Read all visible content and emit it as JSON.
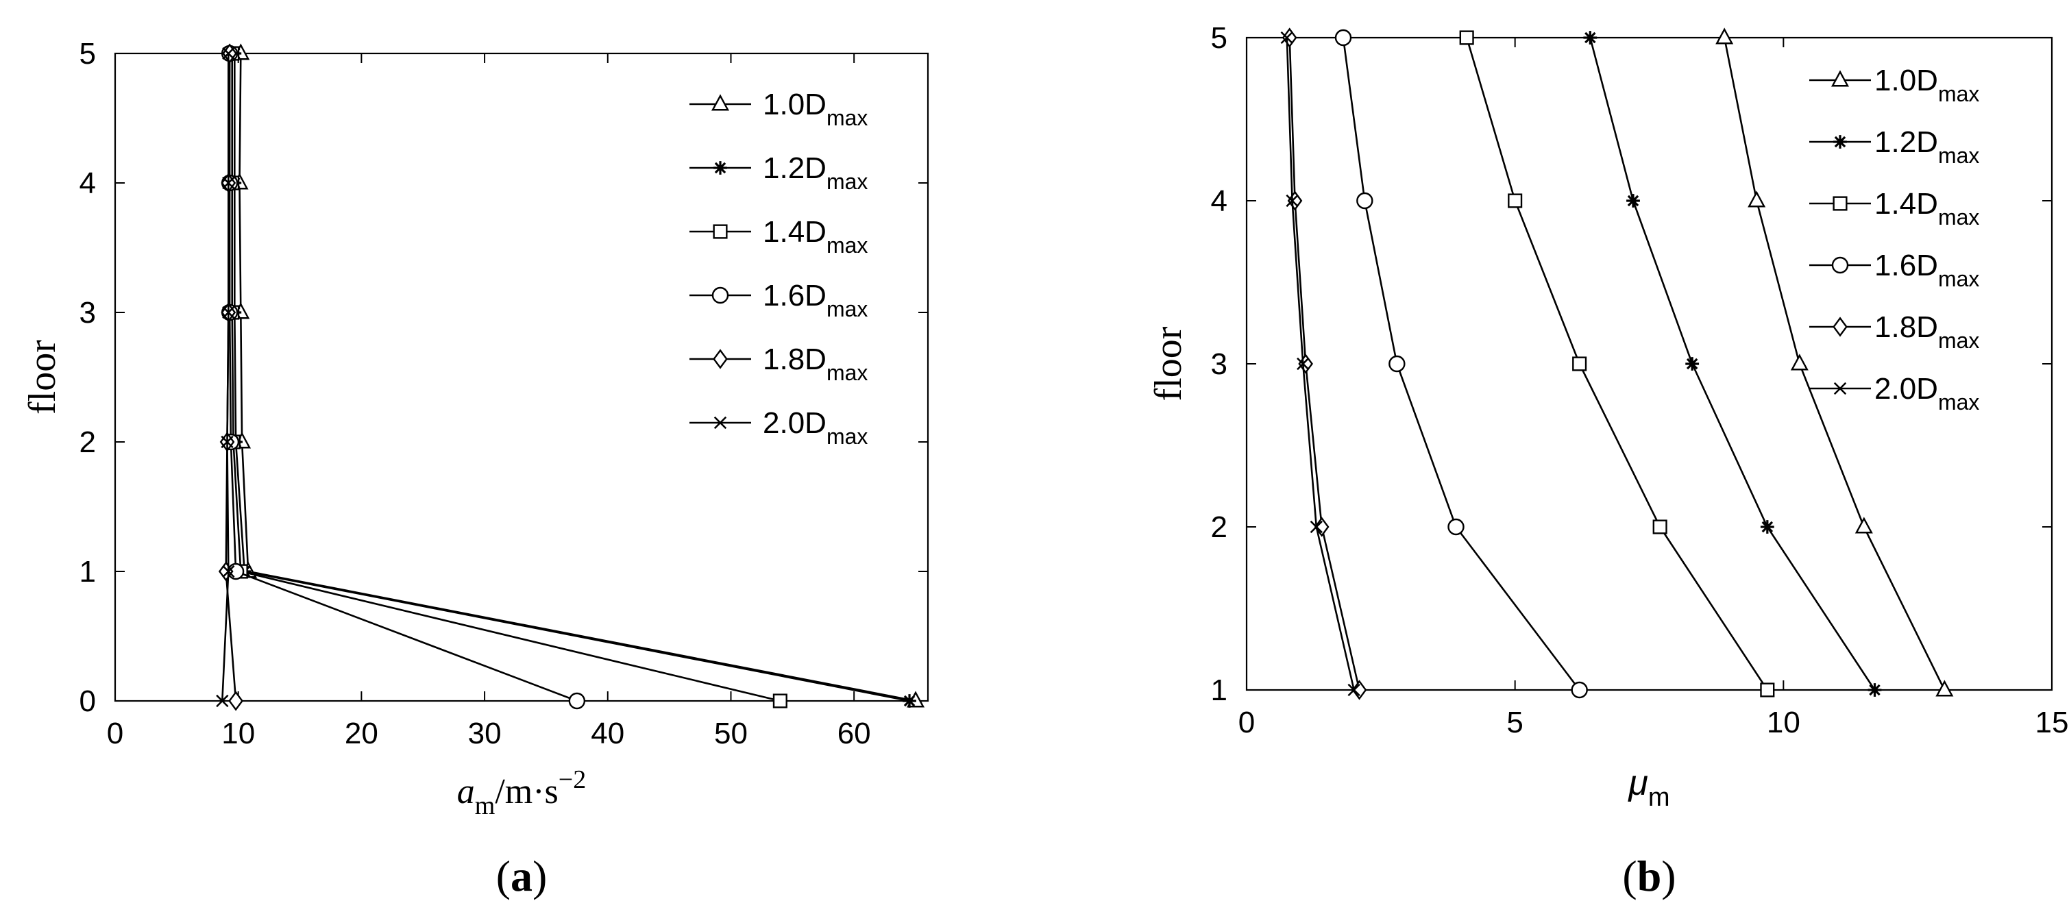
{
  "chart_data": [
    {
      "type": "line",
      "panel_label": "a",
      "xlabel": {
        "base": "a",
        "sub": "m",
        "rest": "/m·s",
        "sup": "−2"
      },
      "ylabel": "floor",
      "xlim": [
        0,
        66
      ],
      "ylim": [
        0,
        5
      ],
      "xticks": [
        "0",
        "10",
        "20",
        "30",
        "40",
        "50",
        "60"
      ],
      "yticks": [
        "0",
        "1",
        "2",
        "3",
        "4",
        "5"
      ],
      "grid": false,
      "legend_position": "top-right",
      "series": [
        {
          "name": "1.0",
          "sub": "max",
          "marker": "triangle",
          "points": [
            [
              65,
              0
            ],
            [
              10.8,
              1
            ],
            [
              10.3,
              2
            ],
            [
              10.2,
              3
            ],
            [
              10.1,
              4
            ],
            [
              10.2,
              5
            ]
          ]
        },
        {
          "name": "1.2",
          "sub": "max",
          "marker": "star",
          "points": [
            [
              64.5,
              0
            ],
            [
              10.5,
              1
            ],
            [
              9.8,
              2
            ],
            [
              9.7,
              3
            ],
            [
              9.7,
              4
            ],
            [
              9.7,
              5
            ]
          ]
        },
        {
          "name": "1.4",
          "sub": "max",
          "marker": "square",
          "points": [
            [
              54,
              0
            ],
            [
              10.2,
              1
            ],
            [
              9.6,
              2
            ],
            [
              9.5,
              3
            ],
            [
              9.5,
              4
            ],
            [
              9.5,
              5
            ]
          ]
        },
        {
          "name": "1.6",
          "sub": "max",
          "marker": "circle",
          "points": [
            [
              37.5,
              0
            ],
            [
              9.8,
              1
            ],
            [
              9.4,
              2
            ],
            [
              9.3,
              3
            ],
            [
              9.3,
              4
            ],
            [
              9.3,
              5
            ]
          ]
        },
        {
          "name": "1.8",
          "sub": "max",
          "marker": "diamond",
          "points": [
            [
              9.8,
              0
            ],
            [
              9,
              1
            ],
            [
              9.1,
              2
            ],
            [
              9.2,
              3
            ],
            [
              9.2,
              4
            ],
            [
              9.3,
              5
            ]
          ]
        },
        {
          "name": "2.0",
          "sub": "max",
          "marker": "x",
          "points": [
            [
              8.7,
              0
            ],
            [
              9.2,
              1
            ],
            [
              9.1,
              2
            ],
            [
              9.2,
              3
            ],
            [
              9.2,
              4
            ],
            [
              9.2,
              5
            ]
          ]
        }
      ]
    },
    {
      "type": "line",
      "panel_label": "b",
      "xlabel": {
        "base": "μ",
        "sub": "m"
      },
      "ylabel": "floor",
      "xlim": [
        0,
        15
      ],
      "ylim": [
        1,
        5
      ],
      "xticks": [
        "0",
        "5",
        "10",
        "15"
      ],
      "yticks": [
        "1",
        "2",
        "3",
        "4",
        "5"
      ],
      "grid": false,
      "legend_position": "top-right",
      "series": [
        {
          "name": "1.0",
          "sub": "max",
          "marker": "triangle",
          "points": [
            [
              13,
              1
            ],
            [
              11.5,
              2
            ],
            [
              10.3,
              3
            ],
            [
              9.5,
              4
            ],
            [
              8.9,
              5
            ]
          ]
        },
        {
          "name": "1.2",
          "sub": "max",
          "marker": "star",
          "points": [
            [
              11.7,
              1
            ],
            [
              9.7,
              2
            ],
            [
              8.3,
              3
            ],
            [
              7.2,
              4
            ],
            [
              6.4,
              5
            ]
          ]
        },
        {
          "name": "1.4",
          "sub": "max",
          "marker": "square",
          "points": [
            [
              9.7,
              1
            ],
            [
              7.7,
              2
            ],
            [
              6.2,
              3
            ],
            [
              5,
              4
            ],
            [
              4.1,
              5
            ]
          ]
        },
        {
          "name": "1.6",
          "sub": "max",
          "marker": "circle",
          "points": [
            [
              6.2,
              1
            ],
            [
              3.9,
              2
            ],
            [
              2.8,
              3
            ],
            [
              2.2,
              4
            ],
            [
              1.8,
              5
            ]
          ]
        },
        {
          "name": "1.8",
          "sub": "max",
          "marker": "diamond",
          "points": [
            [
              2.1,
              1
            ],
            [
              1.4,
              2
            ],
            [
              1.1,
              3
            ],
            [
              0.9,
              4
            ],
            [
              0.8,
              5
            ]
          ]
        },
        {
          "name": "2.0",
          "sub": "max",
          "marker": "x",
          "points": [
            [
              2,
              1
            ],
            [
              1.3,
              2
            ],
            [
              1.05,
              3
            ],
            [
              0.85,
              4
            ],
            [
              0.75,
              5
            ]
          ]
        }
      ]
    }
  ]
}
